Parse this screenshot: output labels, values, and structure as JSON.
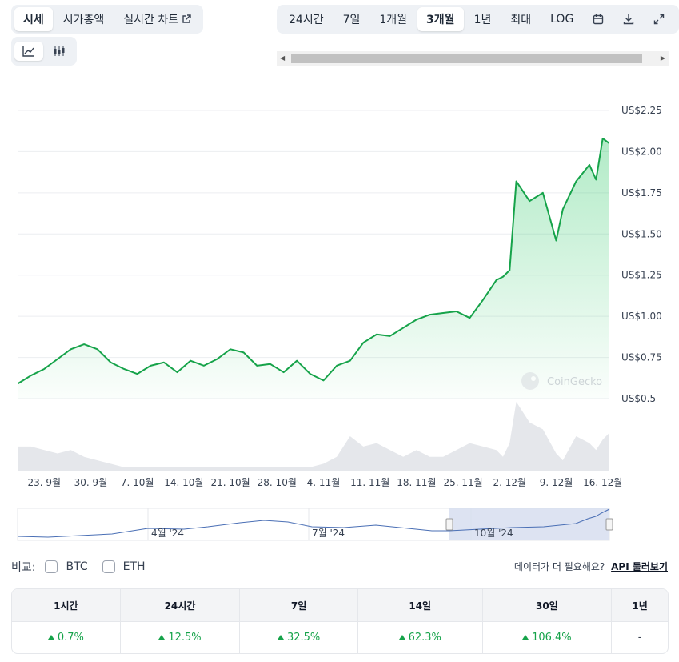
{
  "view_tabs": [
    {
      "label": "시세",
      "active": true
    },
    {
      "label": "시가총액",
      "active": false
    },
    {
      "label": "실시간 차트",
      "active": false
    }
  ],
  "chart_type_icons": [
    "line-chart-icon",
    "candlestick-chart-icon"
  ],
  "range_tabs": [
    {
      "label": "24시간",
      "active": false
    },
    {
      "label": "7일",
      "active": false
    },
    {
      "label": "1개월",
      "active": false
    },
    {
      "label": "3개월",
      "active": true
    },
    {
      "label": "1년",
      "active": false
    },
    {
      "label": "최대",
      "active": false
    },
    {
      "label": "LOG",
      "active": false
    }
  ],
  "range_icons": [
    "calendar-icon",
    "download-icon",
    "expand-icon"
  ],
  "colors": {
    "price_line": "#16a34a",
    "area_top": "#22c55e",
    "volume": "#e5e7eb",
    "navigator_line": "#4a6fb5",
    "navigator_mask": "#d7def0"
  },
  "watermark": "CoinGecko",
  "chart_data": {
    "type": "line",
    "title": "",
    "ylabel": "",
    "y_ticks": [
      "US$2.25",
      "US$2.00",
      "US$1.75",
      "US$1.50",
      "US$1.25",
      "US$1.00",
      "US$0.75",
      "US$0.5"
    ],
    "y_tick_values": [
      2.25,
      2.0,
      1.75,
      1.5,
      1.25,
      1.0,
      0.75,
      0.5
    ],
    "ylim": [
      0.5,
      2.25
    ],
    "x_ticks": [
      "23. 9월",
      "30. 9월",
      "7. 10월",
      "14. 10월",
      "21. 10월",
      "28. 10월",
      "4. 11월",
      "11. 11월",
      "18. 11월",
      "25. 11월",
      "2. 12월",
      "9. 12월",
      "16. 12월"
    ],
    "xlim": [
      "2024-09-19",
      "2024-12-17"
    ],
    "grid": true,
    "series": [
      {
        "x": [
          "2024-09-19",
          "2024-09-21",
          "2024-09-23",
          "2024-09-25",
          "2024-09-27",
          "2024-09-29",
          "2024-10-01",
          "2024-10-03",
          "2024-10-05",
          "2024-10-07",
          "2024-10-09",
          "2024-10-11",
          "2024-10-13",
          "2024-10-15",
          "2024-10-17",
          "2024-10-19",
          "2024-10-21",
          "2024-10-23",
          "2024-10-25",
          "2024-10-27",
          "2024-10-29",
          "2024-10-31",
          "2024-11-02",
          "2024-11-04",
          "2024-11-06",
          "2024-11-08",
          "2024-11-10",
          "2024-11-12",
          "2024-11-14",
          "2024-11-16",
          "2024-11-18",
          "2024-11-20",
          "2024-11-22",
          "2024-11-24",
          "2024-11-26",
          "2024-11-28",
          "2024-11-30",
          "2024-12-01",
          "2024-12-02",
          "2024-12-03",
          "2024-12-05",
          "2024-12-07",
          "2024-12-09",
          "2024-12-10",
          "2024-12-12",
          "2024-12-14",
          "2024-12-15",
          "2024-12-16",
          "2024-12-17"
        ],
        "y": [
          0.59,
          0.64,
          0.68,
          0.74,
          0.8,
          0.83,
          0.8,
          0.72,
          0.68,
          0.65,
          0.7,
          0.72,
          0.66,
          0.73,
          0.7,
          0.74,
          0.8,
          0.78,
          0.7,
          0.71,
          0.66,
          0.73,
          0.65,
          0.61,
          0.7,
          0.73,
          0.84,
          0.89,
          0.88,
          0.93,
          0.98,
          1.01,
          1.02,
          1.03,
          0.99,
          1.1,
          1.22,
          1.24,
          1.28,
          1.82,
          1.7,
          1.75,
          1.46,
          1.65,
          1.82,
          1.92,
          1.83,
          2.08,
          2.05
        ]
      }
    ],
    "volume_approx": [
      0.35,
      0.35,
      0.3,
      0.25,
      0.3,
      0.2,
      0.15,
      0.1,
      0.05,
      0.05,
      0.05,
      0.05,
      0.05,
      0.05,
      0.05,
      0.05,
      0.05,
      0.05,
      0.05,
      0.05,
      0.05,
      0.05,
      0.05,
      0.1,
      0.2,
      0.5,
      0.35,
      0.4,
      0.3,
      0.2,
      0.3,
      0.2,
      0.2,
      0.3,
      0.4,
      0.35,
      0.3,
      0.2,
      0.4,
      1.0,
      0.7,
      0.6,
      0.25,
      0.15,
      0.5,
      0.4,
      0.3,
      0.45,
      0.55
    ]
  },
  "navigator": {
    "labels": [
      "4월 '24",
      "7월 '24",
      "10월 '24"
    ]
  },
  "compare": {
    "label": "비교:",
    "options": [
      "BTC",
      "ETH"
    ]
  },
  "api_note": {
    "text": "데이터가 더 필요해요?",
    "link": "API 둘러보기"
  },
  "performance": {
    "headers": [
      "1시간",
      "24시간",
      "7일",
      "14일",
      "30일",
      "1년"
    ],
    "values": [
      "0.7%",
      "12.5%",
      "32.5%",
      "62.3%",
      "106.4%",
      "-"
    ],
    "direction": [
      "up",
      "up",
      "up",
      "up",
      "up",
      "none"
    ]
  }
}
